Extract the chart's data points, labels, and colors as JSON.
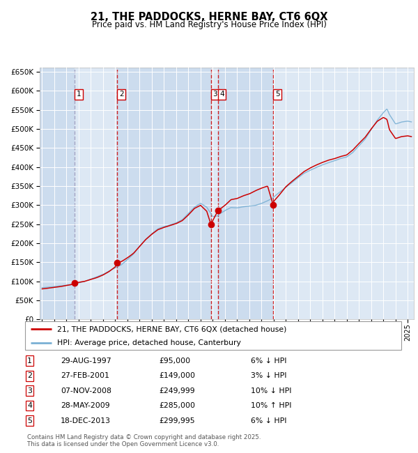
{
  "title": "21, THE PADDOCKS, HERNE BAY, CT6 6QX",
  "subtitle": "Price paid vs. HM Land Registry's House Price Index (HPI)",
  "ylim": [
    0,
    660000
  ],
  "yticks": [
    0,
    50000,
    100000,
    150000,
    200000,
    250000,
    300000,
    350000,
    400000,
    450000,
    500000,
    550000,
    600000,
    650000
  ],
  "xlim_start": 1994.8,
  "xlim_end": 2025.5,
  "sale_dates": [
    1997.66,
    2001.16,
    2008.85,
    2009.41,
    2013.96
  ],
  "sale_prices": [
    95000,
    149000,
    249999,
    285000,
    299995
  ],
  "sale_labels": [
    "1",
    "2",
    "3",
    "4",
    "5"
  ],
  "hpi_anchors": {
    "1995.0": 83000,
    "1995.5": 84500,
    "1996.0": 86000,
    "1996.5": 88000,
    "1997.0": 90000,
    "1997.5": 92000,
    "1997.66": 93000,
    "1998.0": 96000,
    "1998.5": 100000,
    "1999.0": 106000,
    "1999.5": 112000,
    "2000.0": 118000,
    "2000.5": 127000,
    "2001.0": 135000,
    "2001.16": 138000,
    "2001.5": 143000,
    "2002.0": 157000,
    "2002.5": 172000,
    "2003.0": 193000,
    "2003.5": 210000,
    "2004.0": 225000,
    "2004.5": 238000,
    "2005.0": 244000,
    "2005.5": 248000,
    "2006.0": 254000,
    "2006.5": 262000,
    "2007.0": 278000,
    "2007.5": 295000,
    "2008.0": 305000,
    "2008.5": 295000,
    "2008.85": 278000,
    "2009.0": 270000,
    "2009.41": 272000,
    "2009.5": 276000,
    "2010.0": 286000,
    "2010.5": 294000,
    "2011.0": 293000,
    "2011.5": 296000,
    "2012.0": 298000,
    "2012.5": 300000,
    "2013.0": 305000,
    "2013.5": 312000,
    "2013.96": 320000,
    "2014.0": 322000,
    "2014.5": 335000,
    "2015.0": 348000,
    "2015.5": 360000,
    "2016.0": 373000,
    "2016.5": 385000,
    "2017.0": 393000,
    "2017.5": 400000,
    "2018.0": 407000,
    "2018.5": 413000,
    "2019.0": 418000,
    "2019.5": 424000,
    "2020.0": 428000,
    "2020.5": 440000,
    "2021.0": 458000,
    "2021.5": 475000,
    "2022.0": 500000,
    "2022.5": 525000,
    "2023.0": 545000,
    "2023.3": 555000,
    "2023.5": 540000,
    "2024.0": 515000,
    "2024.5": 520000,
    "2025.0": 522000,
    "2025.3": 520000
  },
  "prop_anchors": {
    "1995.0": 80000,
    "1995.5": 82000,
    "1996.0": 84000,
    "1996.5": 86000,
    "1997.0": 89000,
    "1997.5": 92000,
    "1997.66": 95000,
    "1998.0": 97000,
    "1998.5": 100000,
    "1999.0": 105000,
    "1999.5": 110000,
    "2000.0": 117000,
    "2000.5": 126000,
    "2001.0": 138000,
    "2001.16": 149000,
    "2001.5": 152000,
    "2002.0": 162000,
    "2002.5": 174000,
    "2003.0": 192000,
    "2003.5": 210000,
    "2004.0": 224000,
    "2004.5": 236000,
    "2005.0": 242000,
    "2005.5": 247000,
    "2006.0": 252000,
    "2006.5": 260000,
    "2007.0": 275000,
    "2007.5": 292000,
    "2008.0": 300000,
    "2008.5": 285000,
    "2008.85": 249999,
    "2009.0": 260000,
    "2009.41": 285000,
    "2009.5": 288000,
    "2010.0": 300000,
    "2010.5": 315000,
    "2011.0": 318000,
    "2011.5": 325000,
    "2012.0": 330000,
    "2012.5": 338000,
    "2013.0": 345000,
    "2013.5": 350000,
    "2013.96": 299995,
    "2014.0": 310000,
    "2014.5": 328000,
    "2015.0": 348000,
    "2015.5": 362000,
    "2016.0": 375000,
    "2016.5": 388000,
    "2017.0": 397000,
    "2017.5": 405000,
    "2018.0": 412000,
    "2018.5": 418000,
    "2019.0": 422000,
    "2019.5": 428000,
    "2020.0": 432000,
    "2020.5": 445000,
    "2021.0": 462000,
    "2021.5": 478000,
    "2022.0": 500000,
    "2022.5": 520000,
    "2023.0": 530000,
    "2023.3": 525000,
    "2023.5": 498000,
    "2024.0": 475000,
    "2024.5": 480000,
    "2025.0": 482000,
    "2025.3": 480000
  },
  "plot_bg_color": "#dce8f5",
  "grid_color": "#ffffff",
  "hpi_line_color": "#7ab0d4",
  "price_line_color": "#cc0000",
  "sale_color": "#cc0000",
  "vline_color": "#cc0000",
  "vline1_color": "#9999bb",
  "legend_line1": "21, THE PADDOCKS, HERNE BAY, CT6 6QX (detached house)",
  "legend_line2": "HPI: Average price, detached house, Canterbury",
  "table_rows": [
    [
      "1",
      "29-AUG-1997",
      "£95,000",
      "6% ↓ HPI"
    ],
    [
      "2",
      "27-FEB-2001",
      "£149,000",
      "3% ↓ HPI"
    ],
    [
      "3",
      "07-NOV-2008",
      "£249,999",
      "10% ↓ HPI"
    ],
    [
      "4",
      "28-MAY-2009",
      "£285,000",
      "10% ↑ HPI"
    ],
    [
      "5",
      "18-DEC-2013",
      "£299,995",
      "6% ↓ HPI"
    ]
  ],
  "footer": "Contains HM Land Registry data © Crown copyright and database right 2025.\nThis data is licensed under the Open Government Licence v3.0."
}
